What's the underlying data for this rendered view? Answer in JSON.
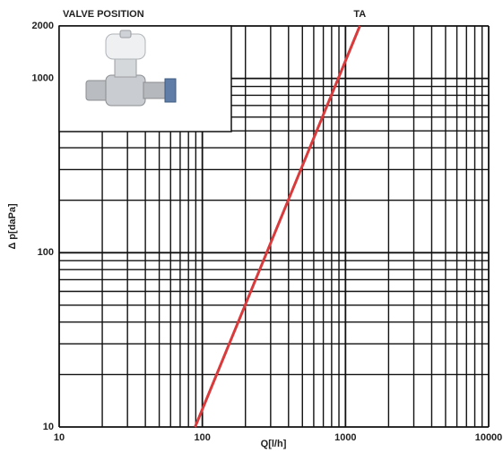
{
  "chart_data": {
    "type": "line",
    "title": "VALVE POSITION",
    "xlabel": "Q[l/h]",
    "ylabel": "Δ p[daPa]",
    "x_log": true,
    "y_log": true,
    "grid": true,
    "minor_grid": true,
    "xlim": [
      10,
      10000
    ],
    "xticks": [
      10,
      100,
      1000,
      10000
    ],
    "ylim": [
      10,
      2000
    ],
    "yticks": [
      10,
      100,
      1000,
      2000
    ],
    "series": [
      {
        "name": "TA",
        "color": "#d93a3c",
        "x": [
          89,
          1259
        ],
        "values": [
          10,
          2000
        ]
      }
    ]
  }
}
